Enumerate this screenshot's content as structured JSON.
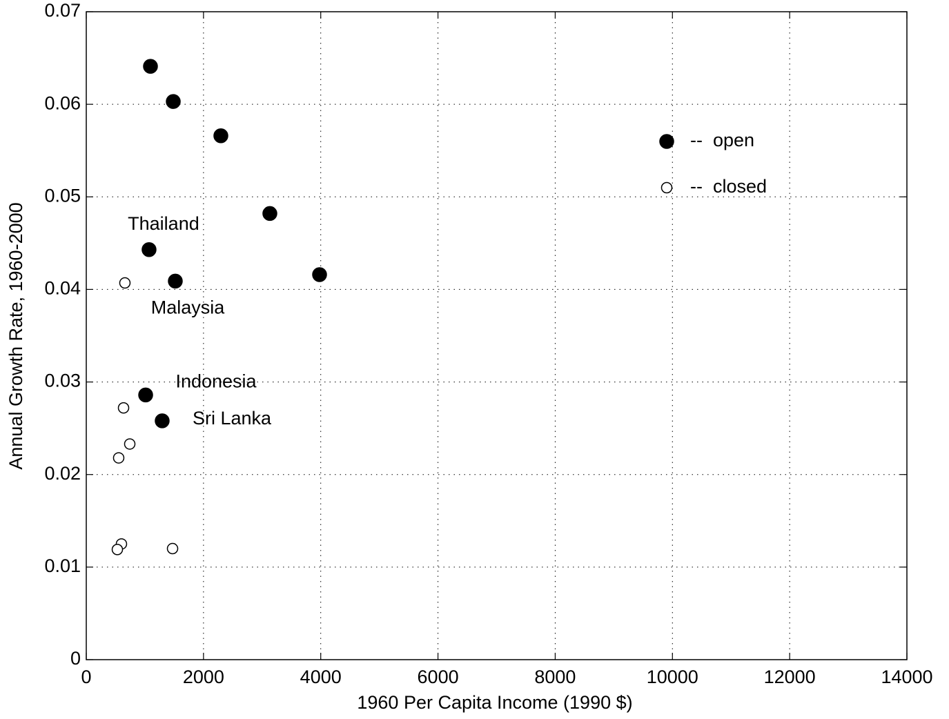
{
  "chart_data": {
    "type": "scatter",
    "xlabel": "1960 Per Capita Income (1990 $)",
    "ylabel": "Annual Growth Rate, 1960-2000",
    "xlim": [
      0,
      14000
    ],
    "xticks": [
      0,
      2000,
      4000,
      6000,
      8000,
      10000,
      12000,
      14000
    ],
    "ylim": [
      0,
      0.07
    ],
    "yticks": [
      0,
      0.01,
      0.02,
      0.03,
      0.04,
      0.05,
      0.06,
      0.07
    ],
    "grid": true,
    "legend": "upper right",
    "series": [
      {
        "name": "--  open",
        "color": "#000000",
        "filled": true,
        "x": [
          1095,
          1484,
          2296,
          3132,
          1071,
          1519,
          3980,
          1013,
          1295
        ],
        "values": [
          0.0641,
          0.0603,
          0.0566,
          0.0482,
          0.0443,
          0.0409,
          0.0416,
          0.0286,
          0.0258
        ]
      },
      {
        "name": "--  closed",
        "color": "#000000",
        "filled": false,
        "x": [
          659,
          636,
          742,
          553,
          600,
          530,
          1472
        ],
        "values": [
          0.0407,
          0.0272,
          0.0233,
          0.0218,
          0.0125,
          0.0119,
          0.012
        ]
      }
    ],
    "annotations": [
      "Thailand",
      "Malaysia",
      "Indonesia",
      "Sri Lanka"
    ]
  }
}
